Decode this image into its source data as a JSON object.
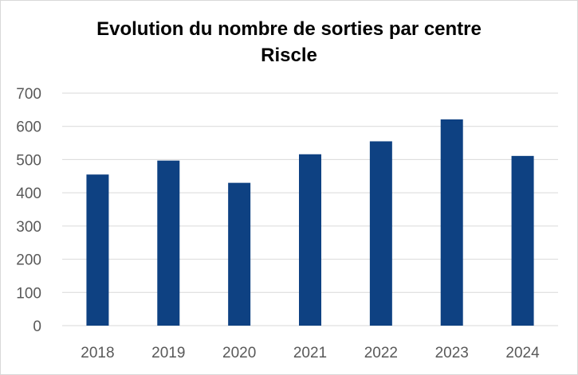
{
  "chart_data": {
    "type": "bar",
    "title": "Evolution du nombre de sorties par centre",
    "subtitle": "Riscle",
    "categories": [
      "2018",
      "2019",
      "2020",
      "2021",
      "2022",
      "2023",
      "2024"
    ],
    "values": [
      455,
      497,
      430,
      516,
      555,
      621,
      511
    ],
    "ylim": [
      0,
      700
    ],
    "yticks": [
      0,
      100,
      200,
      300,
      400,
      500,
      600,
      700
    ],
    "grid": true,
    "legend": false,
    "colors": {
      "bar": "#0e4182",
      "grid": "#d9d9d9",
      "axis_text": "#595959"
    }
  }
}
